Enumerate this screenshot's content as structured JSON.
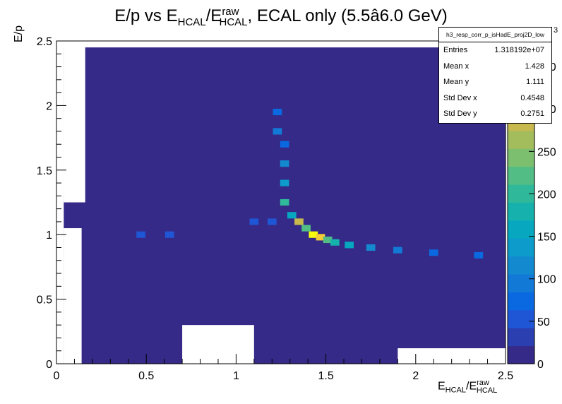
{
  "title": {
    "pre": "E/p vs E",
    "sub1": "HCAL",
    "mid": "/E",
    "sup2": "raw",
    "sub2": "HCAL",
    "post": ", ECAL only (5.5â6.0 GeV)"
  },
  "axes": {
    "ylabel": "E/p",
    "xlabel": {
      "pre": "E",
      "sub1": "HCAL",
      "mid": "/E",
      "sup2": "raw",
      "sub2": "HCAL"
    },
    "xticks": [
      "0",
      "0.5",
      "1",
      "1.5",
      "2",
      "2.5"
    ],
    "yticks": [
      "0",
      "0.5",
      "1",
      "1.5",
      "2",
      "2.5"
    ]
  },
  "palette": {
    "z_ticks": [
      "0",
      "50",
      "100",
      "150",
      "200",
      "250",
      "300",
      "350"
    ],
    "exponent": "3",
    "colors": [
      "#352a87",
      "#2b3fb0",
      "#1f56d6",
      "#0a69e0",
      "#1279d6",
      "#138ad0",
      "#0c9bcb",
      "#06a7bf",
      "#17b1ad",
      "#2fb89a",
      "#52bd84",
      "#7bbf6f",
      "#a3bd5d",
      "#c7b94e",
      "#e6b944",
      "#f5cc38",
      "#f9e226",
      "#f9fb0e"
    ]
  },
  "stats": {
    "name": "h3_resp_corr_p_isHadE_proj2D_low",
    "rows": [
      {
        "k": "Entries",
        "v": "1.318192e+07"
      },
      {
        "k": "Mean x",
        "v": "1.428"
      },
      {
        "k": "Mean y",
        "v": "1.111"
      },
      {
        "k": "Std Dev x",
        "v": "0.4548"
      },
      {
        "k": "Std Dev y",
        "v": "0.2751"
      }
    ]
  },
  "chart_data": {
    "type": "heatmap",
    "xlim": [
      0,
      2.5
    ],
    "ylim": [
      0,
      2.5
    ],
    "zlim": [
      0,
      380
    ],
    "z_scale_note": "x10^3",
    "hot_cells": [
      {
        "x": 1.23,
        "y": 1.95,
        "z": 70
      },
      {
        "x": 1.23,
        "y": 1.8,
        "z": 90
      },
      {
        "x": 1.27,
        "y": 1.7,
        "z": 80
      },
      {
        "x": 1.27,
        "y": 1.55,
        "z": 110
      },
      {
        "x": 1.27,
        "y": 1.4,
        "z": 140
      },
      {
        "x": 1.27,
        "y": 1.25,
        "z": 200
      },
      {
        "x": 1.31,
        "y": 1.15,
        "z": 160
      },
      {
        "x": 1.35,
        "y": 1.1,
        "z": 290
      },
      {
        "x": 1.39,
        "y": 1.05,
        "z": 230
      },
      {
        "x": 1.43,
        "y": 1.0,
        "z": 380
      },
      {
        "x": 1.47,
        "y": 0.98,
        "z": 320
      },
      {
        "x": 1.51,
        "y": 0.96,
        "z": 220
      },
      {
        "x": 1.55,
        "y": 0.94,
        "z": 180
      },
      {
        "x": 1.63,
        "y": 0.92,
        "z": 150
      },
      {
        "x": 1.75,
        "y": 0.9,
        "z": 120
      },
      {
        "x": 1.9,
        "y": 0.88,
        "z": 100
      },
      {
        "x": 2.1,
        "y": 0.86,
        "z": 80
      },
      {
        "x": 2.35,
        "y": 0.84,
        "z": 70
      },
      {
        "x": 0.47,
        "y": 1.0,
        "z": 60
      },
      {
        "x": 0.63,
        "y": 1.0,
        "z": 55
      },
      {
        "x": 1.1,
        "y": 1.1,
        "z": 45
      },
      {
        "x": 1.2,
        "y": 1.1,
        "z": 50
      }
    ],
    "background_z": 8
  }
}
